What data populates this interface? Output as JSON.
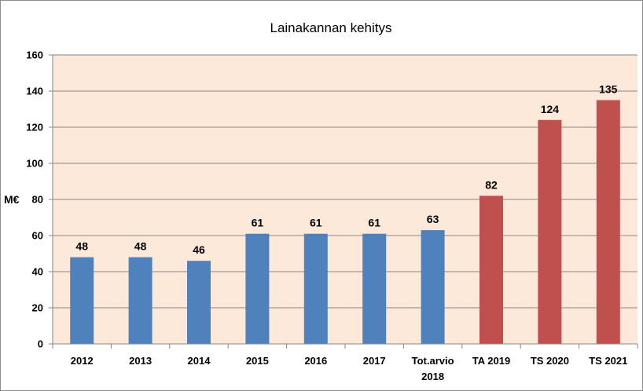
{
  "chart_data": {
    "type": "bar",
    "title": "Lainakannan kehitys",
    "xlabel": "",
    "ylabel": "M€",
    "ylim": [
      0,
      160
    ],
    "yticks": [
      0,
      20,
      40,
      60,
      80,
      100,
      120,
      140,
      160
    ],
    "grid": true,
    "legend": "none",
    "categories": [
      "2012",
      "2013",
      "2014",
      "2015",
      "2016",
      "2017",
      "Tot.arvio\n2018",
      "TA 2019",
      "TS 2020",
      "TS 2021"
    ],
    "values": [
      48,
      48,
      46,
      61,
      61,
      61,
      63,
      82,
      124,
      135
    ],
    "bar_colors": [
      "#4f81bd",
      "#4f81bd",
      "#4f81bd",
      "#4f81bd",
      "#4f81bd",
      "#4f81bd",
      "#4f81bd",
      "#c0504d",
      "#c0504d",
      "#c0504d"
    ],
    "plot_background": "#fde9d9",
    "gridline_color": "#868686"
  }
}
